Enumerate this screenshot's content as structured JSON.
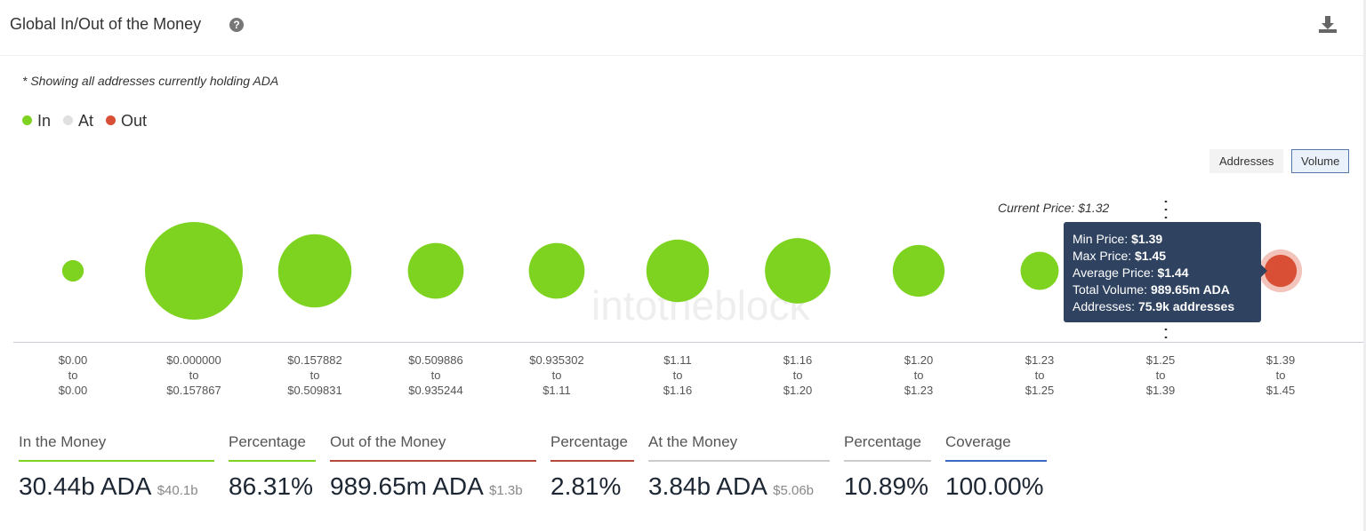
{
  "header": {
    "title": "Global In/Out of the Money",
    "help_icon": "question-circle-icon",
    "download_icon": "download-icon"
  },
  "note": "* Showing all addresses currently holding ADA",
  "legend": [
    {
      "label": "In",
      "color": "#7ed321"
    },
    {
      "label": "At",
      "color": "#e0e0e0"
    },
    {
      "label": "Out",
      "color": "#d94f35"
    }
  ],
  "toggle": {
    "addresses": "Addresses",
    "volume": "Volume",
    "selected": "Volume"
  },
  "chart_data": {
    "type": "bubble",
    "current_price_label": "Current Price: $1.32",
    "watermark": "intotheblock",
    "buckets": [
      {
        "from": "$0.00",
        "to": "$0.00",
        "status": "In",
        "relative_size": 0.22
      },
      {
        "from": "$0.000000",
        "to": "$0.157867",
        "status": "In",
        "relative_size": 1.0
      },
      {
        "from": "$0.157882",
        "to": "$0.509831",
        "status": "In",
        "relative_size": 0.75
      },
      {
        "from": "$0.509886",
        "to": "$0.935244",
        "status": "In",
        "relative_size": 0.57
      },
      {
        "from": "$0.935302",
        "to": "$1.11",
        "status": "In",
        "relative_size": 0.57
      },
      {
        "from": "$1.11",
        "to": "$1.16",
        "status": "In",
        "relative_size": 0.64
      },
      {
        "from": "$1.16",
        "to": "$1.20",
        "status": "In",
        "relative_size": 0.67
      },
      {
        "from": "$1.20",
        "to": "$1.23",
        "status": "In",
        "relative_size": 0.53
      },
      {
        "from": "$1.23",
        "to": "$1.25",
        "status": "In",
        "relative_size": 0.39
      },
      {
        "from": "$1.25",
        "to": "$1.39",
        "status": "At",
        "relative_size": 0.67
      },
      {
        "from": "$1.39",
        "to": "$1.45",
        "status": "Out",
        "relative_size": 0.33
      }
    ],
    "tooltip": {
      "min_label": "Min Price: ",
      "min": "$1.39",
      "max_label": "Max Price: ",
      "max": "$1.45",
      "avg_label": "Average Price: ",
      "avg": "$1.44",
      "vol_label": "Total Volume: ",
      "vol": "989.65m ADA",
      "addr_label": "Addresses: ",
      "addr": "75.9k addresses"
    }
  },
  "stats": [
    {
      "label": "In the Money",
      "value": "30.44b ADA",
      "sub": "$40.1b",
      "color": "#7ed321"
    },
    {
      "label": "Percentage",
      "value": "86.31%",
      "sub": "",
      "color": "#7ed321"
    },
    {
      "label": "Out of the Money",
      "value": "989.65m ADA",
      "sub": "$1.3b",
      "color": "#b5483a"
    },
    {
      "label": "Percentage",
      "value": "2.81%",
      "sub": "",
      "color": "#b5483a"
    },
    {
      "label": "At the Money",
      "value": "3.84b ADA",
      "sub": "$5.06b",
      "color": "#ccc"
    },
    {
      "label": "Percentage",
      "value": "10.89%",
      "sub": "",
      "color": "#ccc"
    },
    {
      "label": "Coverage",
      "value": "100.00%",
      "sub": "",
      "color": "#3a66c4"
    }
  ]
}
